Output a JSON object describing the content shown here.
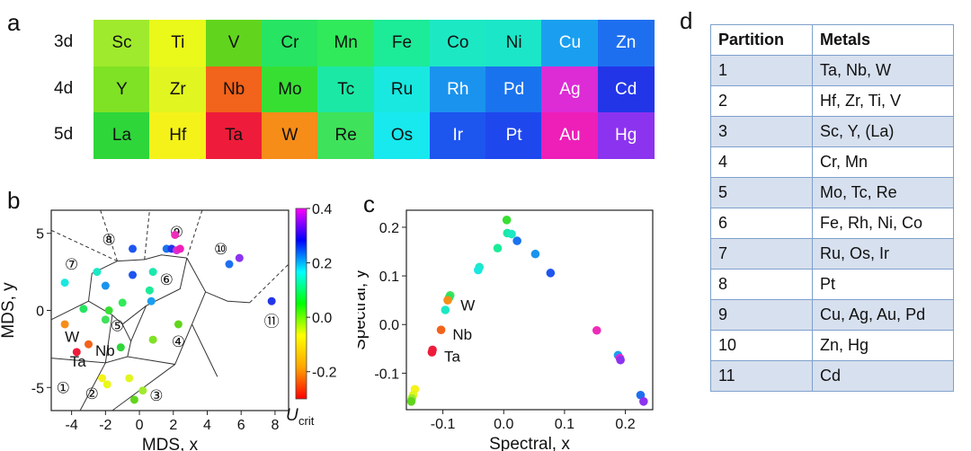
{
  "panels": {
    "a": "a",
    "b": "b",
    "c": "c",
    "d": "d"
  },
  "periodic_table": {
    "rows": [
      {
        "label": "3d",
        "cells": [
          {
            "symbol": "Sc",
            "color": "#a0ea2d",
            "text": "light"
          },
          {
            "symbol": "Ti",
            "color": "#eaf81a",
            "text": "light"
          },
          {
            "symbol": "V",
            "color": "#61d51d",
            "text": "light"
          },
          {
            "symbol": "Cr",
            "color": "#27e462",
            "text": "light"
          },
          {
            "symbol": "Mn",
            "color": "#30ea5b",
            "text": "light"
          },
          {
            "symbol": "Fe",
            "color": "#1ceb98",
            "text": "light"
          },
          {
            "symbol": "Co",
            "color": "#1de8c4",
            "text": "light"
          },
          {
            "symbol": "Ni",
            "color": "#1be6c8",
            "text": "light"
          },
          {
            "symbol": "Cu",
            "color": "#1a9ff0",
            "text": "dark"
          },
          {
            "symbol": "Zn",
            "color": "#1e6ff0",
            "text": "dark"
          }
        ]
      },
      {
        "label": "4d",
        "cells": [
          {
            "symbol": "Y",
            "color": "#7fe224",
            "text": "light"
          },
          {
            "symbol": "Zr",
            "color": "#e1f620",
            "text": "light"
          },
          {
            "symbol": "Nb",
            "color": "#f2631b",
            "text": "light"
          },
          {
            "symbol": "Mo",
            "color": "#37df33",
            "text": "light"
          },
          {
            "symbol": "Tc",
            "color": "#1ce8a5",
            "text": "light"
          },
          {
            "symbol": "Ru",
            "color": "#19e8e0",
            "text": "light"
          },
          {
            "symbol": "Rh",
            "color": "#1a93ee",
            "text": "dark"
          },
          {
            "symbol": "Pd",
            "color": "#1a73ee",
            "text": "dark"
          },
          {
            "symbol": "Ag",
            "color": "#dd2bd6",
            "text": "dark"
          },
          {
            "symbol": "Cd",
            "color": "#2236e8",
            "text": "dark"
          }
        ]
      },
      {
        "label": "5d",
        "cells": [
          {
            "symbol": "La",
            "color": "#2ed63a",
            "text": "light"
          },
          {
            "symbol": "Hf",
            "color": "#f5f21a",
            "text": "light"
          },
          {
            "symbol": "Ta",
            "color": "#ee1c3a",
            "text": "light"
          },
          {
            "symbol": "W",
            "color": "#f78d19",
            "text": "light"
          },
          {
            "symbol": "Re",
            "color": "#3fe25b",
            "text": "light"
          },
          {
            "symbol": "Os",
            "color": "#17e9ee",
            "text": "light"
          },
          {
            "symbol": "Ir",
            "color": "#1d55ef",
            "text": "dark"
          },
          {
            "symbol": "Pt",
            "color": "#1f47ee",
            "text": "dark"
          },
          {
            "symbol": "Au",
            "color": "#ed1fb8",
            "text": "dark"
          },
          {
            "symbol": "Hg",
            "color": "#8c33ef",
            "text": "dark"
          }
        ]
      }
    ]
  },
  "chart_data": [
    {
      "type": "scatter",
      "panel": "b",
      "xlabel": "MDS, x",
      "ylabel": "MDS, y",
      "xlim": [
        -5.2,
        8.8
      ],
      "ylim": [
        -6.5,
        6.5
      ],
      "xticks": [
        "-4",
        "-2",
        "0",
        "2",
        "4",
        "6",
        "8"
      ],
      "xtick_values": [
        -4,
        -2,
        0,
        2,
        4,
        6,
        8
      ],
      "yticks": [
        "5",
        "0",
        "-5"
      ],
      "ytick_values": [
        5,
        0,
        -5
      ],
      "points": [
        {
          "x": 2.1,
          "y": 4.9,
          "color": "#ee2cb8"
        },
        {
          "x": 1.6,
          "y": 4.0,
          "color": "#1a73ee"
        },
        {
          "x": 1.9,
          "y": 4.0,
          "color": "#2236e8"
        },
        {
          "x": 2.2,
          "y": 3.9,
          "color": "#dd2bd6"
        },
        {
          "x": 2.4,
          "y": 4.0,
          "color": "#ee1fb8"
        },
        {
          "x": -0.4,
          "y": 4.0,
          "color": "#1d55ef"
        },
        {
          "x": 5.9,
          "y": 3.4,
          "color": "#8c33ef"
        },
        {
          "x": 5.3,
          "y": 3.0,
          "color": "#1e6ff0"
        },
        {
          "x": -4.4,
          "y": 1.8,
          "color": "#19e8e0"
        },
        {
          "x": -2.5,
          "y": 2.5,
          "color": "#1ce8c4"
        },
        {
          "x": -2.0,
          "y": 1.6,
          "color": "#1a93ee"
        },
        {
          "x": -0.4,
          "y": 2.3,
          "color": "#1d55ef"
        },
        {
          "x": 0.8,
          "y": 2.5,
          "color": "#1ce8b0"
        },
        {
          "x": 0.6,
          "y": 1.3,
          "color": "#1ceb98"
        },
        {
          "x": 0.7,
          "y": 0.6,
          "color": "#1a9ff0"
        },
        {
          "x": -1.0,
          "y": 0.5,
          "color": "#30ea5b"
        },
        {
          "x": 7.8,
          "y": 0.6,
          "color": "#2236e8"
        },
        {
          "x": -3.3,
          "y": 0.1,
          "color": "#27e462"
        },
        {
          "x": -1.8,
          "y": 0.0,
          "color": "#37df33"
        },
        {
          "x": -2.0,
          "y": -0.6,
          "color": "#3fe25b"
        },
        {
          "x": 2.3,
          "y": -0.9,
          "color": "#61d51d"
        },
        {
          "x": 0.8,
          "y": -1.9,
          "color": "#7fe224"
        },
        {
          "x": -4.4,
          "y": -0.9,
          "color": "#f78d19"
        },
        {
          "x": -3.0,
          "y": -2.2,
          "color": "#f2631b"
        },
        {
          "x": -1.1,
          "y": -2.4,
          "color": "#2ed63a"
        },
        {
          "x": -3.7,
          "y": -2.7,
          "color": "#ee1c3a"
        },
        {
          "x": -2.2,
          "y": -4.4,
          "color": "#f5f21a"
        },
        {
          "x": -1.9,
          "y": -4.8,
          "color": "#eaf81a"
        },
        {
          "x": -0.6,
          "y": -4.4,
          "color": "#e1f620"
        },
        {
          "x": 0.2,
          "y": -5.2,
          "color": "#a0ea2d"
        },
        {
          "x": -0.3,
          "y": -5.8,
          "color": "#61d51d"
        }
      ],
      "region_labels": [
        {
          "text": "①",
          "x": -4.5,
          "y": -5.0
        },
        {
          "text": "②",
          "x": -2.8,
          "y": -5.4
        },
        {
          "text": "③",
          "x": 1.0,
          "y": -5.5
        },
        {
          "text": "④",
          "x": 2.3,
          "y": -2.0
        },
        {
          "text": "⑤",
          "x": -1.3,
          "y": -1.0
        },
        {
          "text": "⑥",
          "x": 1.6,
          "y": 2.0
        },
        {
          "text": "⑦",
          "x": -4.0,
          "y": 3.0
        },
        {
          "text": "⑧",
          "x": -1.8,
          "y": 4.6
        },
        {
          "text": "⑨",
          "x": 2.2,
          "y": 5.1
        },
        {
          "text": "⑩",
          "x": 4.8,
          "y": 4.0
        },
        {
          "text": "⑪",
          "x": 7.8,
          "y": -0.7
        }
      ],
      "annotations": [
        {
          "text": "W",
          "x": -4.4,
          "y": -1.7
        },
        {
          "text": "Ta",
          "x": -4.1,
          "y": -3.3
        },
        {
          "text": "Nb",
          "x": -2.6,
          "y": -2.6
        }
      ],
      "boundaries_solid": [
        [
          [
            -5.2,
            -0.6
          ],
          [
            -3.0,
            0.6
          ],
          [
            -1.6,
            -0.3
          ]
        ],
        [
          [
            -3.0,
            0.6
          ],
          [
            -2.8,
            2.4
          ],
          [
            -1.3,
            3.2
          ]
        ],
        [
          [
            -1.3,
            3.2
          ],
          [
            0.3,
            3.3
          ],
          [
            1.3,
            3.6
          ],
          [
            2.8,
            3.4
          ]
        ],
        [
          [
            2.8,
            3.4
          ],
          [
            2.4,
            1.4
          ],
          [
            0.4,
            0.3
          ],
          [
            -1.0,
            -0.9
          ],
          [
            -1.6,
            -0.3
          ]
        ],
        [
          [
            0.4,
            0.3
          ],
          [
            -0.5,
            -2.0
          ],
          [
            -1.0,
            -0.9
          ]
        ],
        [
          [
            2.8,
            3.4
          ],
          [
            3.9,
            1.2
          ],
          [
            5.2,
            0.6
          ],
          [
            6.5,
            0.5
          ]
        ],
        [
          [
            3.9,
            1.2
          ],
          [
            3.1,
            -0.9
          ],
          [
            4.6,
            -4.3
          ]
        ],
        [
          [
            -0.5,
            -2.0
          ],
          [
            -0.7,
            -3.0
          ],
          [
            2.1,
            -3.5
          ],
          [
            3.1,
            -0.9
          ]
        ],
        [
          [
            -0.7,
            -3.0
          ],
          [
            -2.0,
            -3.4
          ],
          [
            -5.2,
            -3.1
          ]
        ],
        [
          [
            -2.0,
            -3.4
          ],
          [
            -3.5,
            -6.5
          ]
        ],
        [
          [
            2.1,
            -3.5
          ],
          [
            -1.6,
            -6.5
          ]
        ],
        [
          [
            -1.6,
            -0.3
          ],
          [
            -2.0,
            -3.4
          ]
        ]
      ],
      "boundaries_dashed": [
        [
          [
            -2.3,
            6.5
          ],
          [
            -1.3,
            3.2
          ]
        ],
        [
          [
            -1.3,
            3.2
          ],
          [
            -5.2,
            5.2
          ]
        ],
        [
          [
            0.3,
            3.3
          ],
          [
            0.6,
            6.5
          ]
        ],
        [
          [
            3.7,
            6.5
          ],
          [
            2.8,
            3.4
          ]
        ],
        [
          [
            6.5,
            0.5
          ],
          [
            8.8,
            3.0
          ]
        ]
      ],
      "colorbar": {
        "label": "U",
        "label_sub": "crit",
        "range": [
          -0.3,
          0.4
        ],
        "ticks": [
          "0.4",
          "0.2",
          "0.0",
          "-0.2"
        ],
        "tick_values": [
          0.4,
          0.2,
          0.0,
          -0.2
        ],
        "colors": [
          "#ff0000",
          "#ffa500",
          "#ffff00",
          "#00ff00",
          "#00ffff",
          "#0000ff",
          "#ff00ff"
        ]
      }
    },
    {
      "type": "scatter",
      "panel": "c",
      "xlabel": "Spectral, x",
      "ylabel": "Spectral, y",
      "xlim": [
        -0.16,
        0.245
      ],
      "ylim": [
        -0.175,
        0.235
      ],
      "xticks": [
        "-0.1",
        "0.0",
        "0.1",
        "0.2"
      ],
      "xtick_values": [
        -0.1,
        0.0,
        0.1,
        0.2
      ],
      "yticks": [
        "0.2",
        "0.1",
        "0.0",
        "-0.1"
      ],
      "ytick_values": [
        0.2,
        0.1,
        0.0,
        -0.1
      ],
      "points": [
        {
          "x": 0.005,
          "y": 0.215,
          "color": "#37df33"
        },
        {
          "x": 0.006,
          "y": 0.188,
          "color": "#1ce8a5"
        },
        {
          "x": 0.013,
          "y": 0.186,
          "color": "#1de8c4"
        },
        {
          "x": 0.022,
          "y": 0.172,
          "color": "#1a73ee"
        },
        {
          "x": -0.01,
          "y": 0.157,
          "color": "#1ceb98"
        },
        {
          "x": 0.052,
          "y": 0.145,
          "color": "#1a93ee"
        },
        {
          "x": -0.04,
          "y": 0.118,
          "color": "#1de8c4"
        },
        {
          "x": -0.042,
          "y": 0.112,
          "color": "#19e8e0"
        },
        {
          "x": 0.077,
          "y": 0.106,
          "color": "#1d55ef"
        },
        {
          "x": -0.088,
          "y": 0.06,
          "color": "#3fe25b"
        },
        {
          "x": -0.09,
          "y": 0.055,
          "color": "#27e462"
        },
        {
          "x": -0.092,
          "y": 0.05,
          "color": "#f78d19"
        },
        {
          "x": -0.096,
          "y": 0.03,
          "color": "#1ce8c4"
        },
        {
          "x": -0.103,
          "y": -0.011,
          "color": "#f2631b"
        },
        {
          "x": -0.117,
          "y": -0.052,
          "color": "#ee1c3a"
        },
        {
          "x": -0.118,
          "y": -0.057,
          "color": "#ee1c3a"
        },
        {
          "x": 0.153,
          "y": -0.012,
          "color": "#ee2cb8"
        },
        {
          "x": 0.188,
          "y": -0.063,
          "color": "#1a9ff0"
        },
        {
          "x": 0.191,
          "y": -0.069,
          "color": "#dd2bd6"
        },
        {
          "x": 0.192,
          "y": -0.073,
          "color": "#8c33ef"
        },
        {
          "x": 0.225,
          "y": -0.145,
          "color": "#1e6ff0"
        },
        {
          "x": 0.23,
          "y": -0.158,
          "color": "#8c33ef"
        },
        {
          "x": -0.146,
          "y": -0.133,
          "color": "#f5f21a"
        },
        {
          "x": -0.149,
          "y": -0.145,
          "color": "#e1f620"
        },
        {
          "x": -0.151,
          "y": -0.152,
          "color": "#a0ea2d"
        },
        {
          "x": -0.152,
          "y": -0.158,
          "color": "#61d51d"
        }
      ],
      "annotations": [
        {
          "text": "W",
          "x": -0.071,
          "y": 0.04
        },
        {
          "text": "Nb",
          "x": -0.084,
          "y": -0.02
        },
        {
          "text": "Ta",
          "x": -0.098,
          "y": -0.065
        }
      ]
    }
  ],
  "partition_table": {
    "header": {
      "col1": "Partition",
      "col2": "Metals"
    },
    "rows": [
      {
        "id": "1",
        "metals": "Ta, Nb, W"
      },
      {
        "id": "2",
        "metals": "Hf, Zr, Ti, V"
      },
      {
        "id": "3",
        "metals": "Sc, Y, (La)"
      },
      {
        "id": "4",
        "metals": "Cr, Mn"
      },
      {
        "id": "5",
        "metals": "Mo, Tc, Re"
      },
      {
        "id": "6",
        "metals": "Fe, Rh, Ni, Co"
      },
      {
        "id": "7",
        "metals": "Ru, Os, Ir"
      },
      {
        "id": "8",
        "metals": "Pt"
      },
      {
        "id": "9",
        "metals": "Cu, Ag, Au, Pd"
      },
      {
        "id": "10",
        "metals": "Zn, Hg"
      },
      {
        "id": "11",
        "metals": "Cd"
      }
    ]
  }
}
